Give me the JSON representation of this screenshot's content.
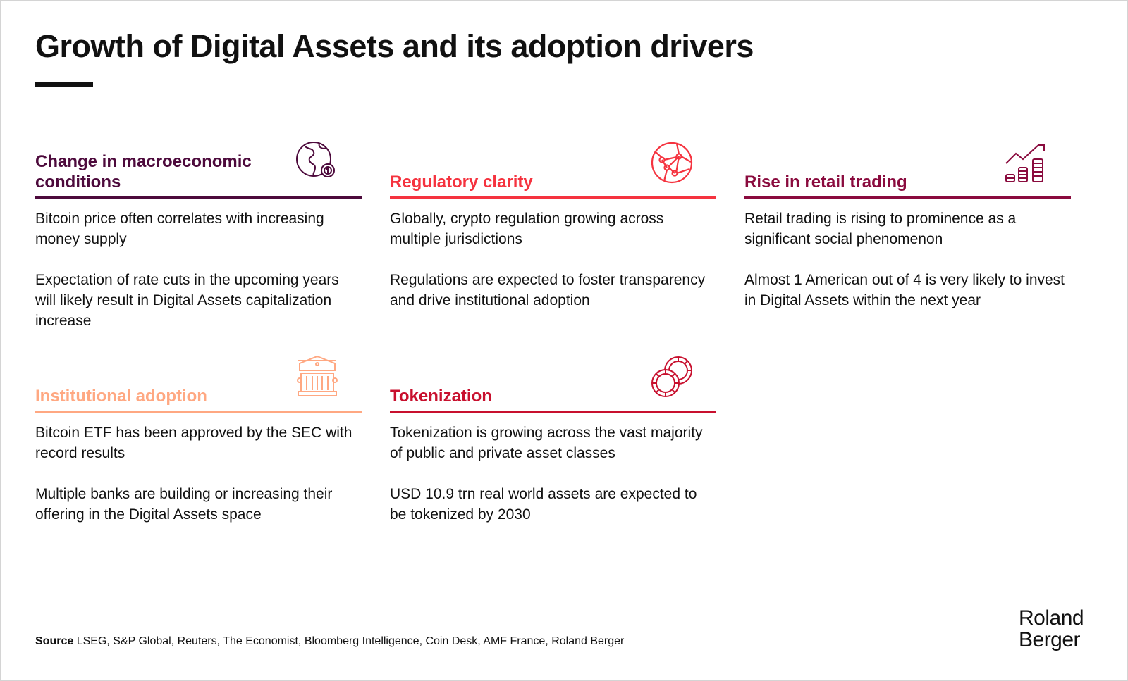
{
  "title": "Growth of Digital Assets and its adoption drivers",
  "colors": {
    "macro": "#4d0a3c",
    "regulatory": "#f5333f",
    "retail": "#8a0b3e",
    "institutional": "#ffa882",
    "tokenization": "#c8102e"
  },
  "cards": [
    {
      "heading": "Change in macroeconomic conditions",
      "icon": "globe-dollar-gear-icon",
      "paragraphs": [
        "Bitcoin price often correlates with increasing money supply",
        "Expectation of rate cuts in the upcoming years will likely result in Digital Assets capitalization increase"
      ]
    },
    {
      "heading": "Regulatory clarity",
      "icon": "network-globe-icon",
      "paragraphs": [
        "Globally, crypto regulation growing across multiple jurisdictions",
        "Regulations are expected to foster transparency and drive institutional adoption"
      ]
    },
    {
      "heading": "Rise in retail trading",
      "icon": "chart-coins-rising-icon",
      "paragraphs": [
        "Retail trading is rising to prominence as a significant social phenomenon",
        "Almost 1 American out of 4 is very likely to invest in Digital Assets within the next year"
      ]
    },
    {
      "heading": "Institutional adoption",
      "icon": "bank-building-icon",
      "paragraphs": [
        "Bitcoin ETF has been approved by the SEC with record results",
        "Multiple banks are building or increasing their offering in the Digital Assets space"
      ]
    },
    {
      "heading": "Tokenization",
      "icon": "tokens-icon",
      "paragraphs": [
        "Tokenization is growing across the vast majority of public and private asset classes",
        "USD 10.9 trn real world assets are expected to be tokenized by 2030"
      ]
    }
  ],
  "source": {
    "label": "Source",
    "text": " LSEG, S&P Global, Reuters, The Economist, Bloomberg Intelligence, Coin Desk, AMF France, Roland Berger"
  },
  "logo": {
    "line1": "Roland",
    "line2": "Berger"
  }
}
